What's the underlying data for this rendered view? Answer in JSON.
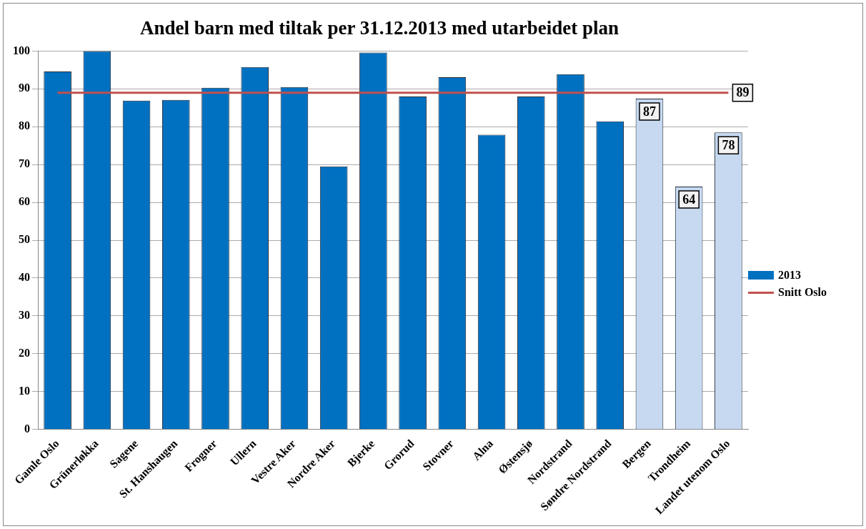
{
  "chart_data": {
    "type": "bar",
    "title": "Andel barn med tiltak per 31.12.2013 med utarbeidet plan",
    "categories": [
      "Gamle Oslo",
      "Grünerløkka",
      "Sagene",
      "St. Hanshaugen",
      "Frogner",
      "Ullern",
      "Vestre Aker",
      "Nordre Aker",
      "Bjerke",
      "Grorud",
      "Stovner",
      "Alna",
      "Østensjø",
      "Nordstrand",
      "Søndre Nordstrand",
      "Bergen",
      "Trondheim",
      "Landet utenom Oslo"
    ],
    "series": [
      {
        "name": "2013",
        "color": "#0070c0",
        "colors": [
          "#0070c0",
          "#0070c0",
          "#0070c0",
          "#0070c0",
          "#0070c0",
          "#0070c0",
          "#0070c0",
          "#0070c0",
          "#0070c0",
          "#0070c0",
          "#0070c0",
          "#0070c0",
          "#0070c0",
          "#0070c0",
          "#0070c0",
          "#c6d9f1",
          "#c6d9f1",
          "#c6d9f1"
        ],
        "values": [
          94.6,
          100,
          86.9,
          87.1,
          90.3,
          95.8,
          90.5,
          69.5,
          99.6,
          88,
          93.1,
          77.9,
          88,
          93.9,
          81.4,
          87.4,
          64.2,
          78.5
        ],
        "value_labels": [
          null,
          null,
          null,
          null,
          null,
          null,
          null,
          null,
          null,
          null,
          null,
          null,
          null,
          null,
          null,
          "87",
          "64",
          "78"
        ]
      },
      {
        "name": "Snitt Oslo",
        "type": "line",
        "color": "#c0504d",
        "values": [
          89,
          89,
          89,
          89,
          89,
          89,
          89,
          89,
          89,
          89,
          89,
          89,
          89,
          89,
          89,
          89,
          89,
          89
        ],
        "value_labels": [
          null,
          null,
          null,
          null,
          null,
          null,
          null,
          null,
          null,
          null,
          null,
          null,
          null,
          null,
          null,
          null,
          null,
          "89"
        ]
      }
    ],
    "ylim": [
      0,
      100
    ],
    "yticks": [
      0,
      10,
      20,
      30,
      40,
      50,
      60,
      70,
      80,
      90,
      100
    ],
    "grid": "y",
    "legend": "right",
    "marker": "none"
  }
}
